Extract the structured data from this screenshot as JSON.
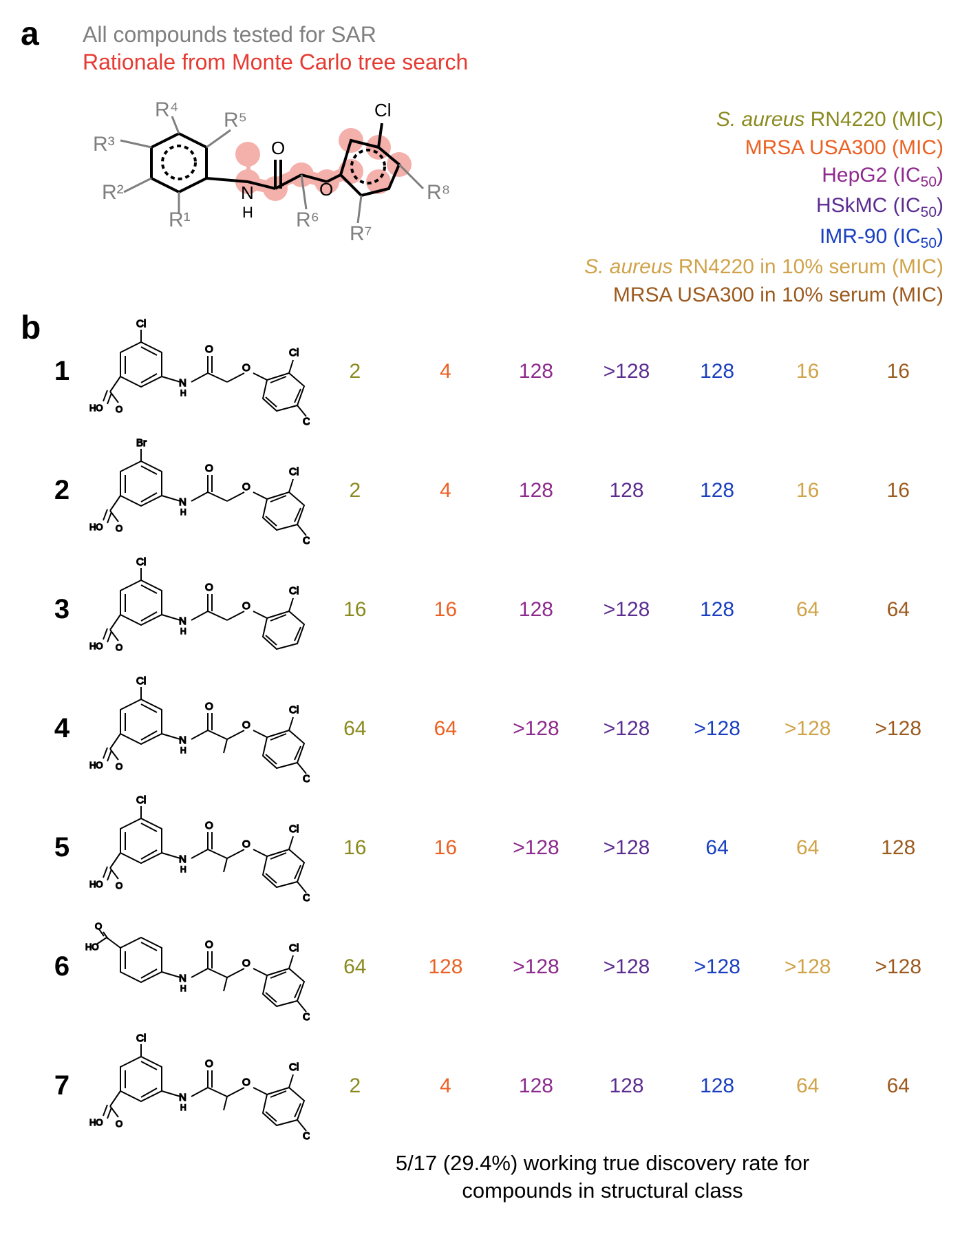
{
  "panel_a_label": "a",
  "panel_b_label": "b",
  "header": {
    "line1": "All compounds tested for SAR",
    "line1_color": "#7f7f7f",
    "line2": "Rationale from Monte Carlo tree search",
    "line2_color": "#e63a32"
  },
  "scaffold": {
    "r_labels": [
      "R¹",
      "R²",
      "R³",
      "R⁴",
      "R⁵",
      "R⁶",
      "R⁷",
      "R⁸"
    ],
    "r_color": "#7f7f7f",
    "highlight_color": "#f4b0ab",
    "bond_color": "#000000",
    "atom_labels": {
      "Cl": "Cl",
      "O": "O",
      "N": "N",
      "H": "H"
    }
  },
  "assays": [
    {
      "label_pre": "S. aureus",
      "label_post": " RN4220 (MIC)",
      "italic": true,
      "color": "#8a8a1f"
    },
    {
      "label_pre": "",
      "label_post": "MRSA USA300 (MIC)",
      "italic": false,
      "color": "#eb6123"
    },
    {
      "label_pre": "",
      "label_post": "HepG2 (IC₅₀)",
      "italic": false,
      "color": "#8d2a8d"
    },
    {
      "label_pre": "",
      "label_post": "HSkMC (IC₅₀)",
      "italic": false,
      "color": "#5c2d90"
    },
    {
      "label_pre": "",
      "label_post": "IMR-90 (IC₅₀)",
      "italic": false,
      "color": "#1a3fc0"
    },
    {
      "label_pre": "S. aureus",
      "label_post": " RN4220 in 10% serum (MIC)",
      "italic": true,
      "color": "#d0a34a"
    },
    {
      "label_pre": "",
      "label_post": "MRSA USA300 in 10% serum (MIC)",
      "italic": false,
      "color": "#9c5a1e"
    }
  ],
  "column_colors": [
    "#8a8a1f",
    "#eb6123",
    "#8d2a8d",
    "#5c2d90",
    "#1a3fc0",
    "#d0a34a",
    "#9c5a1e"
  ],
  "compounds": [
    {
      "id": "1",
      "values": [
        "2",
        "4",
        "128",
        ">128",
        "128",
        "16",
        "16"
      ]
    },
    {
      "id": "2",
      "values": [
        "2",
        "4",
        "128",
        "128",
        "128",
        "16",
        "16"
      ]
    },
    {
      "id": "3",
      "values": [
        "16",
        "16",
        "128",
        ">128",
        "128",
        "64",
        "64"
      ]
    },
    {
      "id": "4",
      "values": [
        "64",
        "64",
        ">128",
        ">128",
        ">128",
        ">128",
        ">128"
      ]
    },
    {
      "id": "5",
      "values": [
        "16",
        "16",
        ">128",
        ">128",
        "64",
        "64",
        "128"
      ]
    },
    {
      "id": "6",
      "values": [
        "64",
        "128",
        ">128",
        ">128",
        ">128",
        ">128",
        ">128"
      ]
    },
    {
      "id": "7",
      "values": [
        "2",
        "4",
        "128",
        "128",
        "128",
        "64",
        "64"
      ]
    }
  ],
  "footer": {
    "line1": "5/17 (29.4%) working true discovery rate for",
    "line2": "compounds in structural class"
  }
}
